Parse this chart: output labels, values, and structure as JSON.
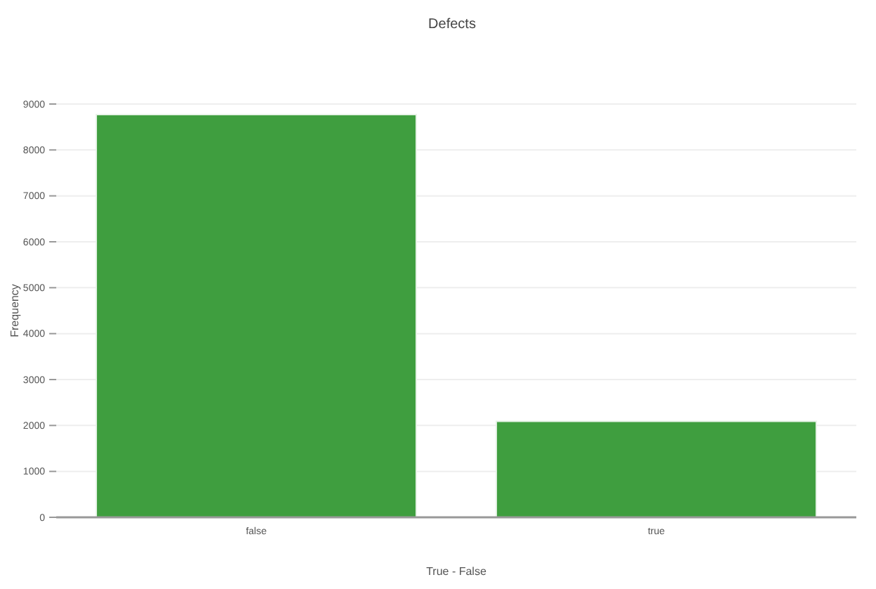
{
  "chart_data": {
    "type": "bar",
    "title": "Defects",
    "xlabel": "True - False",
    "ylabel": "Frequency",
    "categories": [
      "false",
      "true"
    ],
    "values": [
      8770,
      2090
    ],
    "color": "#3f9e3f",
    "ylim": [
      0,
      9000
    ],
    "yticks": [
      0,
      1000,
      2000,
      3000,
      4000,
      5000,
      6000,
      7000,
      8000,
      9000
    ],
    "grid": "y"
  }
}
